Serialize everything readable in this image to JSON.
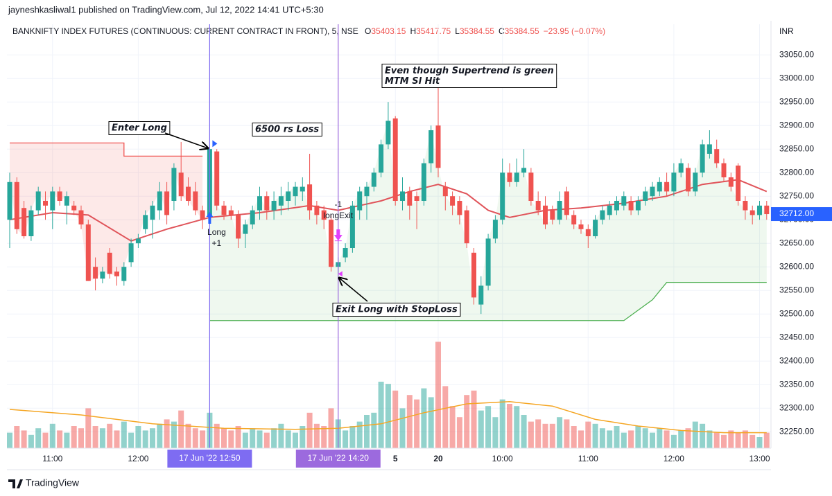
{
  "header": {
    "published": "jayneshkasliwal1 published on TradingView.com, Jul 12, 2022 14:41 UTC+5:30",
    "symbol": "BANKNIFTY INDEX FUTURES (CONTINUOUS: CURRENT CONTRACT IN FRONT), 5, NSE",
    "ohlc": [
      {
        "label": "O",
        "value": "35403.15"
      },
      {
        "label": "H",
        "value": "35417.75"
      },
      {
        "label": "L",
        "value": "35384.55"
      },
      {
        "label": "C",
        "value": "35384.55"
      }
    ],
    "change": "−23.95 (−0.07%)",
    "currency": "INR"
  },
  "chart_data": {
    "type": "candlestick",
    "up_color": "#26a69a",
    "down_color": "#ef5350",
    "ylim": [
      32215,
      33115
    ],
    "yticks": [
      {
        "value": 33050,
        "label": "33050.00"
      },
      {
        "value": 33000,
        "label": "33000.00"
      },
      {
        "value": 32950,
        "label": "32950.00"
      },
      {
        "value": 32900,
        "label": "32900.00"
      },
      {
        "value": 32850,
        "label": "32850.00"
      },
      {
        "value": 32800,
        "label": "32800.00"
      },
      {
        "value": 32750,
        "label": "32750.00"
      },
      {
        "value": 32700,
        "label": "32700.00"
      },
      {
        "value": 32650,
        "label": "32650.00"
      },
      {
        "value": 32600,
        "label": "32600.00"
      },
      {
        "value": 32550,
        "label": "32550.00"
      },
      {
        "value": 32500,
        "label": "32500.00"
      },
      {
        "value": 32450,
        "label": "32450.00"
      },
      {
        "value": 32400,
        "label": "32400.00"
      },
      {
        "value": 32350,
        "label": "32350.00"
      },
      {
        "value": 32300,
        "label": "32300.00"
      },
      {
        "value": 32250,
        "label": "32250.00"
      }
    ],
    "last_price": {
      "value": 32712,
      "label": "32712.00"
    },
    "xticks": [
      {
        "value": 6,
        "label": "11:00"
      },
      {
        "value": 18,
        "label": "12:00"
      },
      {
        "value": 54,
        "label": "5"
      },
      {
        "value": 60,
        "label": "20"
      },
      {
        "value": 69,
        "label": "10:00"
      },
      {
        "value": 81,
        "label": "11:00"
      },
      {
        "value": 93,
        "label": "12:00"
      },
      {
        "value": 105,
        "label": "13:00"
      }
    ],
    "candles": [
      [
        32700,
        32800,
        32640,
        32780
      ],
      [
        32780,
        32790,
        32670,
        32680
      ],
      [
        32725,
        32740,
        32660,
        32665
      ],
      [
        32665,
        32730,
        32655,
        32720
      ],
      [
        32720,
        32770,
        32710,
        32760
      ],
      [
        32740,
        32760,
        32700,
        32730
      ],
      [
        32720,
        32770,
        32680,
        32760
      ],
      [
        32760,
        32770,
        32730,
        32740
      ],
      [
        32730,
        32760,
        32690,
        32750
      ],
      [
        32730,
        32740,
        32710,
        32720
      ],
      [
        32720,
        32730,
        32680,
        32690
      ],
      [
        32690,
        32700,
        32570,
        32570
      ],
      [
        32600,
        32620,
        32550,
        32575
      ],
      [
        32575,
        32600,
        32565,
        32590
      ],
      [
        32630,
        32640,
        32575,
        32585
      ],
      [
        32590,
        32600,
        32560,
        32580
      ],
      [
        32570,
        32610,
        32560,
        32600
      ],
      [
        32610,
        32660,
        32600,
        32650
      ],
      [
        32650,
        32670,
        32640,
        32660
      ],
      [
        32680,
        32720,
        32670,
        32710
      ],
      [
        32700,
        32740,
        32660,
        32730
      ],
      [
        32720,
        32780,
        32700,
        32760
      ],
      [
        32760,
        32780,
        32690,
        32710
      ],
      [
        32740,
        32820,
        32720,
        32810
      ],
      [
        32800,
        32865,
        32740,
        32750
      ],
      [
        32770,
        32790,
        32730,
        32740
      ],
      [
        32760,
        32780,
        32710,
        32720
      ],
      [
        32720,
        32730,
        32680,
        32700
      ],
      [
        32710,
        32860,
        32690,
        32850
      ],
      [
        32845,
        32850,
        32720,
        32730
      ],
      [
        32730,
        32740,
        32700,
        32710
      ],
      [
        32720,
        32730,
        32700,
        32710
      ],
      [
        32710,
        32720,
        32640,
        32660
      ],
      [
        32670,
        32700,
        32640,
        32690
      ],
      [
        32690,
        32730,
        32680,
        32720
      ],
      [
        32720,
        32770,
        32700,
        32750
      ],
      [
        32750,
        32760,
        32700,
        32720
      ],
      [
        32720,
        32760,
        32700,
        32740
      ],
      [
        32730,
        32770,
        32710,
        32750
      ],
      [
        32740,
        32780,
        32720,
        32760
      ],
      [
        32750,
        32780,
        32730,
        32770
      ],
      [
        32760,
        32790,
        32740,
        32770
      ],
      [
        32775,
        32840,
        32700,
        32720
      ],
      [
        32730,
        32740,
        32690,
        32710
      ],
      [
        32720,
        32730,
        32680,
        32700
      ],
      [
        32700,
        32710,
        32590,
        32600
      ],
      [
        32600,
        32620,
        32585,
        32610
      ],
      [
        32620,
        32650,
        32610,
        32640
      ],
      [
        32640,
        32740,
        32630,
        32730
      ],
      [
        32720,
        32770,
        32700,
        32760
      ],
      [
        32750,
        32780,
        32700,
        32770
      ],
      [
        32770,
        32810,
        32760,
        32800
      ],
      [
        32800,
        32870,
        32790,
        32860
      ],
      [
        32860,
        32950,
        32850,
        32910
      ],
      [
        32915,
        32920,
        32730,
        32740
      ],
      [
        32740,
        32790,
        32720,
        32760
      ],
      [
        32760,
        32770,
        32700,
        32730
      ],
      [
        32750,
        32760,
        32680,
        32740
      ],
      [
        32740,
        32830,
        32730,
        32820
      ],
      [
        32820,
        32900,
        32800,
        32890
      ],
      [
        32900,
        32980,
        32790,
        32810
      ],
      [
        32770,
        32780,
        32720,
        32750
      ],
      [
        32750,
        32760,
        32710,
        32730
      ],
      [
        32740,
        32750,
        32690,
        32710
      ],
      [
        32720,
        32730,
        32640,
        32650
      ],
      [
        32630,
        32640,
        32520,
        32535
      ],
      [
        32520,
        32580,
        32500,
        32560
      ],
      [
        32560,
        32670,
        32550,
        32660
      ],
      [
        32660,
        32710,
        32650,
        32700
      ],
      [
        32700,
        32830,
        32690,
        32800
      ],
      [
        32800,
        32820,
        32770,
        32780
      ],
      [
        32780,
        32830,
        32770,
        32800
      ],
      [
        32800,
        32850,
        32790,
        32810
      ],
      [
        32800,
        32810,
        32730,
        32740
      ],
      [
        32740,
        32760,
        32710,
        32720
      ],
      [
        32730,
        32750,
        32680,
        32690
      ],
      [
        32720,
        32730,
        32690,
        32700
      ],
      [
        32700,
        32760,
        32690,
        32740
      ],
      [
        32760,
        32770,
        32700,
        32710
      ],
      [
        32710,
        32720,
        32680,
        32690
      ],
      [
        32690,
        32700,
        32670,
        32680
      ],
      [
        32680,
        32690,
        32640,
        32665
      ],
      [
        32665,
        32710,
        32660,
        32700
      ],
      [
        32700,
        32730,
        32690,
        32720
      ],
      [
        32710,
        32740,
        32700,
        32730
      ],
      [
        32720,
        32750,
        32710,
        32740
      ],
      [
        32730,
        32760,
        32720,
        32750
      ],
      [
        32740,
        32750,
        32710,
        32720
      ],
      [
        32720,
        32750,
        32710,
        32740
      ],
      [
        32740,
        32770,
        32730,
        32760
      ],
      [
        32750,
        32780,
        32740,
        32770
      ],
      [
        32760,
        32790,
        32750,
        32780
      ],
      [
        32780,
        32800,
        32750,
        32760
      ],
      [
        32760,
        32820,
        32750,
        32800
      ],
      [
        32800,
        32830,
        32790,
        32820
      ],
      [
        32810,
        32820,
        32750,
        32760
      ],
      [
        32760,
        32810,
        32750,
        32800
      ],
      [
        32800,
        32870,
        32790,
        32860
      ],
      [
        32840,
        32890,
        32830,
        32860
      ],
      [
        32850,
        32870,
        32810,
        32820
      ],
      [
        32820,
        32830,
        32780,
        32790
      ],
      [
        32790,
        32800,
        32760,
        32770
      ],
      [
        32815,
        32820,
        32730,
        32740
      ],
      [
        32740,
        32750,
        32700,
        32720
      ],
      [
        32720,
        32730,
        32690,
        32710
      ],
      [
        32710,
        32740,
        32700,
        32730
      ],
      [
        32730,
        32740,
        32700,
        32712
      ]
    ],
    "volume_lim": [
      0,
      100
    ],
    "volume": [
      14,
      20,
      16,
      12,
      18,
      14,
      22,
      16,
      14,
      20,
      18,
      36,
      20,
      18,
      22,
      16,
      24,
      14,
      20,
      16,
      18,
      22,
      26,
      24,
      34,
      22,
      18,
      16,
      32,
      22,
      18,
      16,
      20,
      14,
      18,
      16,
      14,
      18,
      22,
      16,
      14,
      20,
      32,
      22,
      20,
      36,
      26,
      16,
      20,
      24,
      30,
      32,
      60,
      58,
      52,
      36,
      48,
      44,
      54,
      46,
      96,
      56,
      38,
      28,
      48,
      52,
      34,
      38,
      28,
      44,
      40,
      38,
      30,
      24,
      26,
      22,
      22,
      28,
      26,
      20,
      16,
      24,
      22,
      18,
      16,
      20,
      14,
      16,
      20,
      18,
      14,
      18,
      16,
      12,
      16,
      18,
      24,
      22,
      16,
      14,
      12,
      16,
      14,
      16,
      12,
      10,
      14
    ],
    "volume_ma": {
      "color": "#f5a623",
      "x": [
        0,
        10,
        20,
        30,
        40,
        46,
        52,
        58,
        64,
        70,
        76,
        82,
        88,
        94,
        100,
        106
      ],
      "values": [
        35,
        30,
        22,
        18,
        17,
        18,
        22,
        32,
        40,
        42,
        38,
        26,
        20,
        16,
        14,
        14
      ]
    },
    "ma": {
      "color": "#e0545a",
      "x": [
        0,
        6,
        11,
        17,
        22,
        28,
        35,
        42,
        46,
        52,
        56,
        60,
        64,
        67,
        70,
        75,
        80,
        86,
        92,
        97,
        102,
        106
      ],
      "values": [
        32700,
        32715,
        32710,
        32655,
        32680,
        32705,
        32715,
        32730,
        32720,
        32740,
        32760,
        32775,
        32755,
        32720,
        32705,
        32720,
        32725,
        32735,
        32750,
        32775,
        32785,
        32760
      ]
    },
    "supertrend": [
      {
        "color": "#ef5350",
        "fill": "rgba(239,83,80,0.13)",
        "x": [
          0,
          16,
          16,
          27
        ],
        "values": [
          32863,
          32863,
          32835,
          32835
        ]
      },
      {
        "color": "#4caf50",
        "fill": "rgba(76,175,80,0.09)",
        "x": [
          28,
          86,
          87,
          90,
          92,
          106
        ],
        "values": [
          32486,
          32486,
          32497,
          32530,
          32567,
          32567
        ]
      }
    ],
    "markers": [
      {
        "index": 28,
        "labels": [
          "Long",
          "+1"
        ],
        "color": "#2962ff"
      },
      {
        "index": 46,
        "labels": [
          "-1",
          "longExit"
        ],
        "color": "#e040fb"
      }
    ],
    "verticals": [
      {
        "index": 28,
        "label": "17 Jun '22  12:50",
        "color": "#7e6cf2"
      },
      {
        "index": 46,
        "label": "17 Jun '22  14:20",
        "color": "#9c6ade"
      }
    ],
    "annotations": [
      {
        "text": "Enter Long"
      },
      {
        "text": "6500 rs Loss"
      },
      {
        "lines": [
          "Even though Supertrend is green",
          "MTM Sl Hit"
        ]
      },
      {
        "text": "Exit Long with StopLoss"
      }
    ]
  },
  "footer": "TradingView"
}
